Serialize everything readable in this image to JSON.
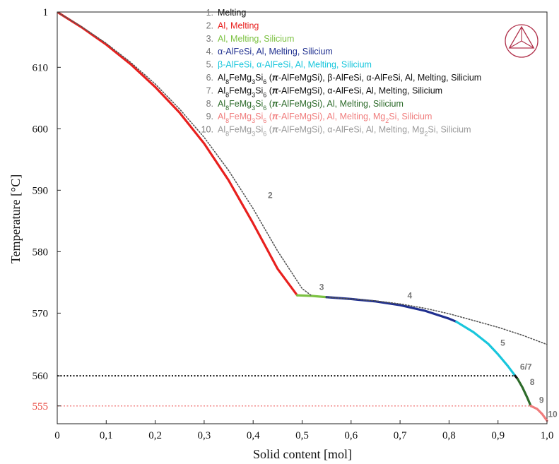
{
  "chart_data": {
    "type": "line",
    "title": "",
    "xlabel": "Solid content [mol]",
    "ylabel": "Temperature [°C]",
    "xlim": [
      0,
      1.0
    ],
    "ylim": [
      552,
      619
    ],
    "x_ticks": [
      "0",
      "0,1",
      "0,2",
      "0,3",
      "0,4",
      "0,5",
      "0,6",
      "0,7",
      "0,8",
      "0,9",
      "1,0"
    ],
    "x_tick_values": [
      0,
      0.1,
      0.2,
      0.3,
      0.4,
      0.5,
      0.6,
      0.7,
      0.8,
      0.9,
      1.0
    ],
    "y_ticks": [
      "570",
      "580",
      "590",
      "600",
      "610"
    ],
    "y_tick_values": [
      570,
      580,
      590,
      600,
      610
    ],
    "y_top_label": "1",
    "y_top_value": 619,
    "special_y_ticks": [
      {
        "label": "560",
        "value": 559.8,
        "color": "#222222"
      },
      {
        "label": "555",
        "value": 554.9,
        "color": "#e8453c"
      }
    ],
    "grid": false,
    "legend_position": "top-right",
    "legend": [
      {
        "number": "1.",
        "text": "Melting",
        "color": "#111111"
      },
      {
        "number": "2.",
        "text": "Al, Melting",
        "color": "#e8201e"
      },
      {
        "number": "3.",
        "text": "Al, Melting, Silicium",
        "color": "#7cc242"
      },
      {
        "number": "4.",
        "text": "α-AlFeSi, Al, Melting, Silicium",
        "color": "#1f2f8f"
      },
      {
        "number": "5.",
        "text": "β-AlFeSi, α-AlFeSi, Al, Melting, Silicium",
        "color": "#18c6dc"
      },
      {
        "number": "6.",
        "text": "Al8FeMg3Si6 (π-AlFeMgSi), β-AlFeSi, α-AlFeSi, Al, Melting, Silicium",
        "color": "#111111"
      },
      {
        "number": "7.",
        "text": "Al8FeMg3Si6 (π-AlFeMgSi), α-AlFeSi, Al, Melting, Silicium",
        "color": "#111111"
      },
      {
        "number": "8.",
        "text": "Al8FeMg3Si6 (π-AlFeMgSi), Al, Melting, Silicium",
        "color": "#2d6b2a"
      },
      {
        "number": "9.",
        "text": "Al8FeMg3Si6 (π-AlFeMgSi), Al, Melting, Mg2Si, Silicium",
        "color": "#f07c7c"
      },
      {
        "number": "10.",
        "text": "Al8FeMg3Si6 (π-AlFeMgSi), α-AlFeSi, Al, Melting, Mg2Si, Silicium",
        "color": "#9a9a9a"
      }
    ],
    "series": [
      {
        "segment": "2",
        "color": "#e8201e",
        "style": "solid",
        "x": [
          0,
          0.05,
          0.1,
          0.15,
          0.2,
          0.25,
          0.3,
          0.35,
          0.4,
          0.45,
          0.49
        ],
        "y": [
          619,
          616.5,
          613.7,
          610.5,
          606.8,
          602.6,
          597.6,
          591.6,
          584.6,
          577.2,
          572.9
        ]
      },
      {
        "segment": "3",
        "color": "#7cc242",
        "style": "solid",
        "x": [
          0.49,
          0.52,
          0.55
        ],
        "y": [
          572.9,
          572.8,
          572.6
        ]
      },
      {
        "segment": "4",
        "color": "#1f2f8f",
        "style": "solid",
        "x": [
          0.55,
          0.6,
          0.65,
          0.7,
          0.75,
          0.8,
          0.815
        ],
        "y": [
          572.6,
          572.3,
          571.9,
          571.3,
          570.4,
          569.1,
          568.6
        ]
      },
      {
        "segment": "5",
        "color": "#18c6dc",
        "style": "solid",
        "x": [
          0.815,
          0.85,
          0.88,
          0.9,
          0.92,
          0.935
        ],
        "y": [
          568.6,
          566.9,
          565.0,
          563.3,
          561.4,
          559.8
        ]
      },
      {
        "segment": "6/7",
        "color": "#111111",
        "style": "solid",
        "x": [
          0.935,
          0.94
        ],
        "y": [
          559.8,
          559.3
        ]
      },
      {
        "segment": "8",
        "color": "#2d6b2a",
        "style": "solid",
        "x": [
          0.94,
          0.95,
          0.96,
          0.967
        ],
        "y": [
          559.3,
          557.9,
          556.2,
          554.9
        ]
      },
      {
        "segment": "9",
        "color": "#f07c7c",
        "style": "solid",
        "x": [
          0.967,
          0.98,
          0.99,
          1.0
        ],
        "y": [
          554.9,
          554.4,
          553.6,
          552.5
        ]
      },
      {
        "segment": "2-extension",
        "color": "#555555",
        "style": "dotted",
        "x": [
          0,
          0.05,
          0.1,
          0.15,
          0.2,
          0.25,
          0.3,
          0.35,
          0.4,
          0.45,
          0.5,
          0.52
        ],
        "y": [
          619,
          616.6,
          613.9,
          610.8,
          607.3,
          603.2,
          598.6,
          593.2,
          587.0,
          580.1,
          574.0,
          572.8
        ]
      },
      {
        "segment": "4-extension",
        "color": "#555555",
        "style": "dotted",
        "x": [
          0.55,
          0.6,
          0.65,
          0.7,
          0.75,
          0.8,
          0.85,
          0.9,
          0.95,
          1.0
        ],
        "y": [
          572.6,
          572.3,
          572.0,
          571.5,
          570.8,
          569.9,
          568.8,
          567.7,
          566.4,
          564.9
        ]
      }
    ],
    "reference_lines": [
      {
        "y": 559.8,
        "x_from": 0,
        "x_to": 0.935,
        "color": "#111111",
        "style": "dotted"
      },
      {
        "y": 554.9,
        "x_from": 0,
        "x_to": 0.967,
        "color": "#f07c7c",
        "style": "dotted"
      }
    ],
    "annotations": [
      {
        "text": "2",
        "x": 0.43,
        "y": 588.7
      },
      {
        "text": "3",
        "x": 0.535,
        "y": 573.8
      },
      {
        "text": "4",
        "x": 0.715,
        "y": 572.4
      },
      {
        "text": "5",
        "x": 0.905,
        "y": 564.7
      },
      {
        "text": "6/7",
        "x": 0.945,
        "y": 560.8
      },
      {
        "text": "8",
        "x": 0.965,
        "y": 558.3
      },
      {
        "text": "9",
        "x": 0.984,
        "y": 555.4
      },
      {
        "text": "10",
        "x": 1.002,
        "y": 553.1
      }
    ],
    "logo": {
      "name": "thermo-calc-logo-icon",
      "color": "#b0304a"
    }
  }
}
